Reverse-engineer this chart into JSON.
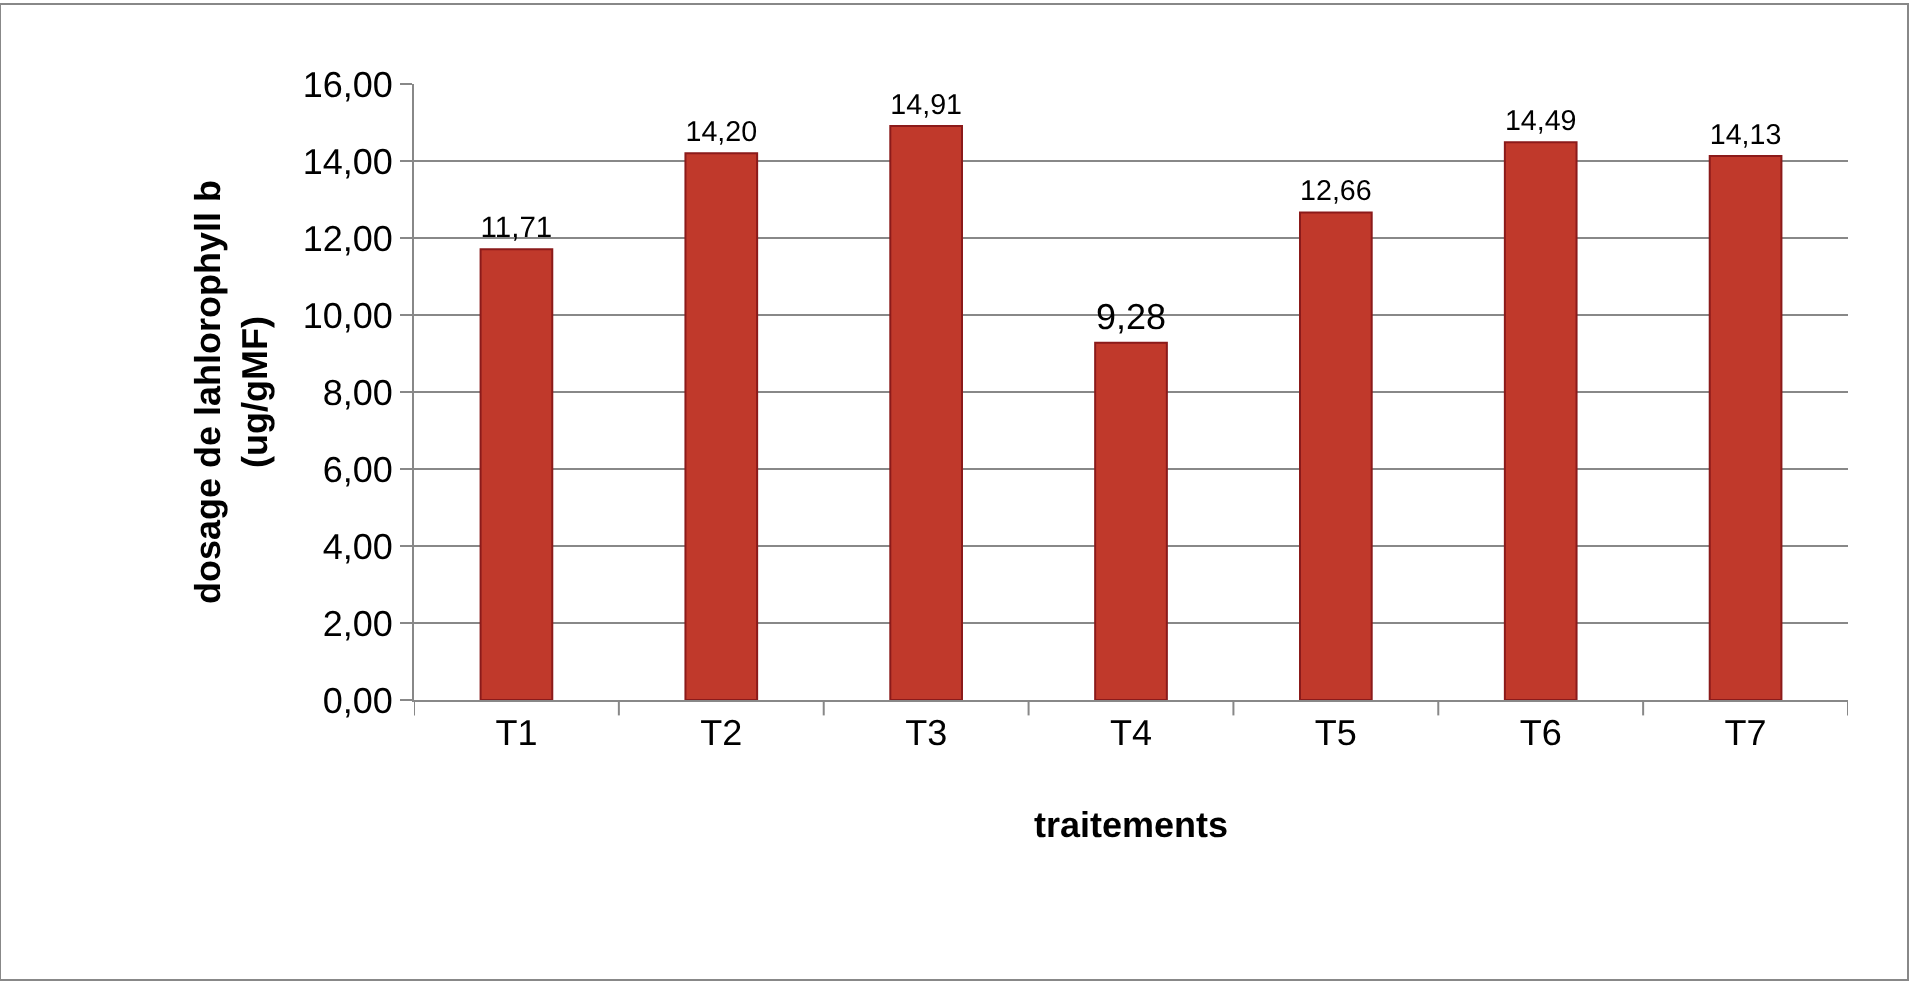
{
  "chart_data": {
    "type": "bar",
    "xlabel": "traitements",
    "ylabel": "dosage de lahlorophyll b\n(ug/gMF)",
    "categories": [
      "T1",
      "T2",
      "T3",
      "T4",
      "T5",
      "T6",
      "T7"
    ],
    "values": [
      11.71,
      14.2,
      14.91,
      9.28,
      12.66,
      14.49,
      14.13
    ],
    "value_labels": [
      "11,71",
      "14,20",
      "14,91",
      "9,28",
      "12,66",
      "14,49",
      "14,13"
    ],
    "color": "#c0392b",
    "ylim": [
      0,
      16
    ],
    "yticks": [
      {
        "value": 0,
        "label": "0,00"
      },
      {
        "value": 2,
        "label": "2,00"
      },
      {
        "value": 4,
        "label": "4,00"
      },
      {
        "value": 6,
        "label": "6,00"
      },
      {
        "value": 8,
        "label": "8,00"
      },
      {
        "value": 10,
        "label": "10,00"
      },
      {
        "value": 12,
        "label": "12,00"
      },
      {
        "value": 14,
        "label": "14,00"
      },
      {
        "value": 16,
        "label": "16,00"
      }
    ],
    "grid": "y",
    "legend": false
  }
}
